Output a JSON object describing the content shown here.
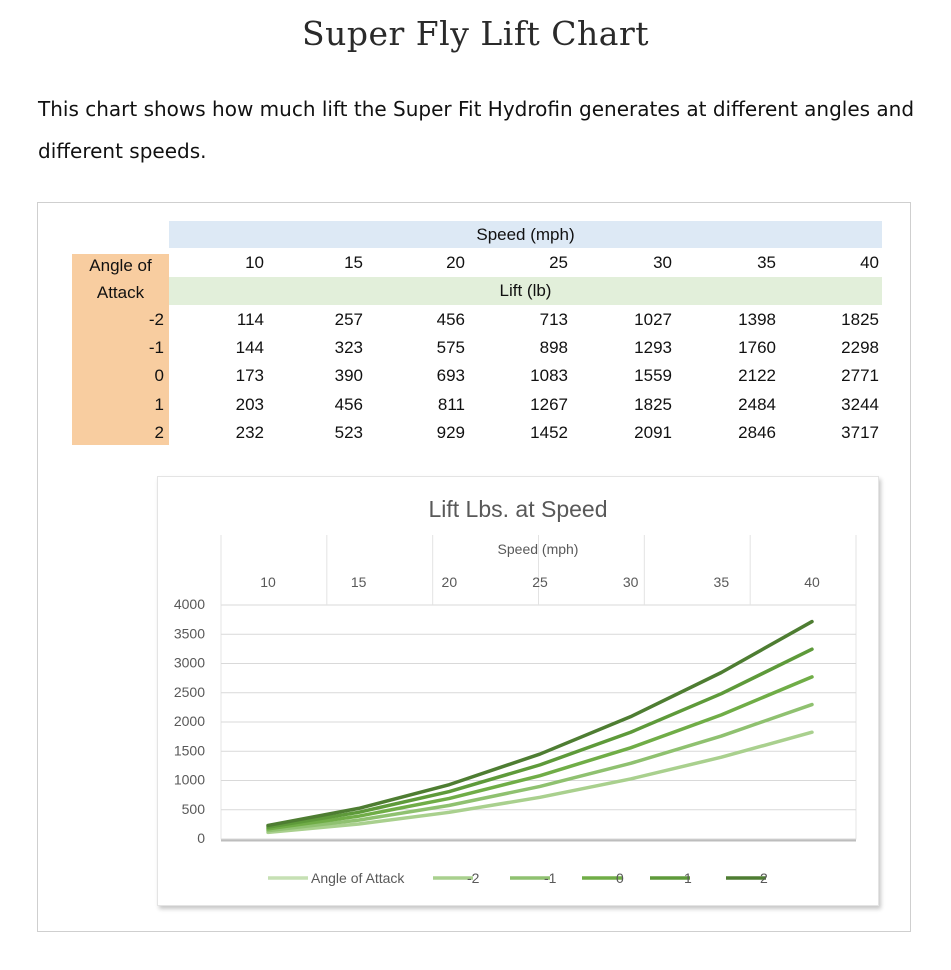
{
  "page": {
    "title": "Super Fly Lift Chart",
    "intro": "This chart shows how much lift the Super Fit Hydrofin generates at different angles and different speeds."
  },
  "table": {
    "speed_header": "Speed (mph)",
    "lift_header": "Lift (lb)",
    "row_header_line1": "Angle of",
    "row_header_line2": "Attack",
    "speeds": [
      "10",
      "15",
      "20",
      "25",
      "30",
      "35",
      "40"
    ],
    "rows": [
      {
        "angle": "-2",
        "values": [
          "114",
          "257",
          "456",
          "713",
          "1027",
          "1398",
          "1825"
        ]
      },
      {
        "angle": "-1",
        "values": [
          "144",
          "323",
          "575",
          "898",
          "1293",
          "1760",
          "2298"
        ]
      },
      {
        "angle": "0",
        "values": [
          "173",
          "390",
          "693",
          "1083",
          "1559",
          "2122",
          "2771"
        ]
      },
      {
        "angle": "1",
        "values": [
          "203",
          "456",
          "811",
          "1267",
          "1825",
          "2484",
          "3244"
        ]
      },
      {
        "angle": "2",
        "values": [
          "232",
          "523",
          "929",
          "1452",
          "2091",
          "2846",
          "3717"
        ]
      }
    ],
    "colors": {
      "speed_band": "#dde9f5",
      "lift_band": "#e2efda",
      "angle_band": "#f8cda0"
    }
  },
  "chart_data": {
    "type": "line",
    "title": "Lift Lbs. at Speed",
    "xlabel": "Speed (mph)",
    "ylabel": "",
    "x": [
      10,
      15,
      20,
      25,
      30,
      35,
      40
    ],
    "x_ticks": [
      "10",
      "15",
      "20",
      "25",
      "30",
      "35",
      "40"
    ],
    "x_axis_position": "top",
    "y_ticks": [
      "0",
      "500",
      "1000",
      "1500",
      "2000",
      "2500",
      "3000",
      "3500",
      "4000"
    ],
    "ylim": [
      0,
      4000
    ],
    "grid": true,
    "legend": {
      "position": "bottom",
      "title": "Angle of Attack"
    },
    "series": [
      {
        "name": "-2",
        "color": "#a9d08e",
        "values": [
          114,
          257,
          456,
          713,
          1027,
          1398,
          1825
        ]
      },
      {
        "name": "-1",
        "color": "#8fc170",
        "values": [
          144,
          323,
          575,
          898,
          1293,
          1760,
          2298
        ]
      },
      {
        "name": "0",
        "color": "#70ad47",
        "values": [
          173,
          390,
          693,
          1083,
          1559,
          2122,
          2771
        ]
      },
      {
        "name": "1",
        "color": "#5e9a3a",
        "values": [
          203,
          456,
          811,
          1267,
          1825,
          2484,
          3244
        ]
      },
      {
        "name": "2",
        "color": "#4e7d32",
        "values": [
          232,
          523,
          929,
          1452,
          2091,
          2846,
          3717
        ]
      }
    ],
    "legend_title_color": "#c6e0b4"
  }
}
